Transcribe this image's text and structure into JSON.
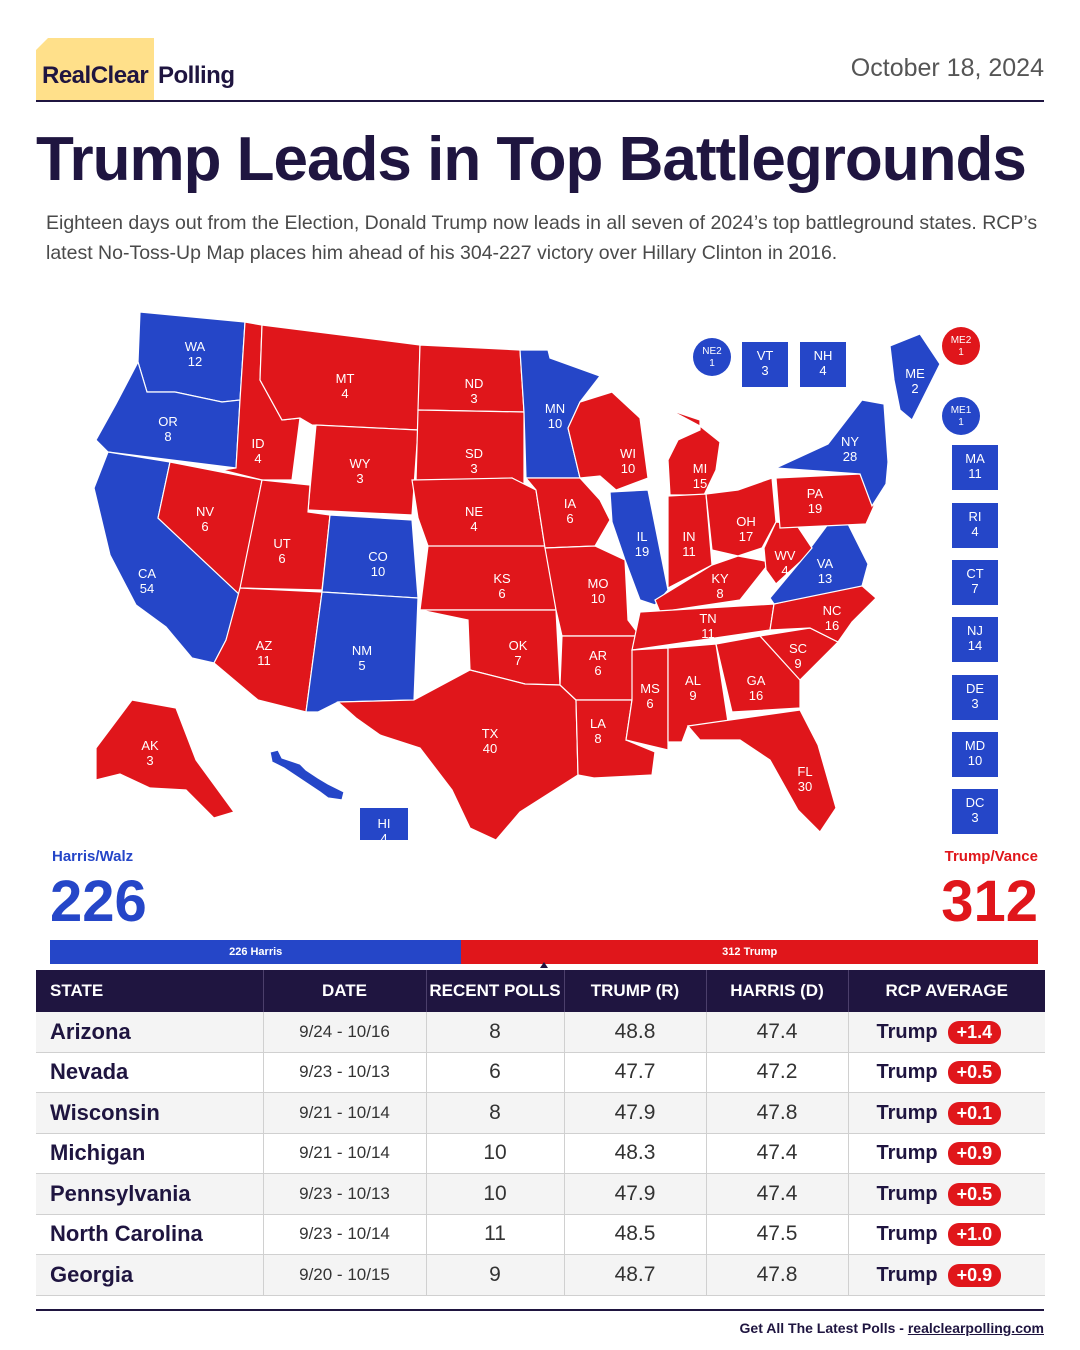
{
  "header": {
    "logo_primary": "RealClear",
    "logo_secondary": "Polling",
    "date": "October 18, 2024"
  },
  "headline": "Trump Leads in Top Battlegrounds",
  "subtitle": "Eighteen days out from the Election, Donald Trump now leads in all seven of 2024’s top battleground states. RCP’s latest No-Toss-Up Map places him ahead of his 304-227 victory over Hillary Clinton in 2016.",
  "colors": {
    "dem": "#2546c8",
    "rep": "#e0161b",
    "navy": "#1f1540",
    "logo_yellow": "#ffe08a"
  },
  "map": {
    "states": [
      {
        "abbr": "WA",
        "ev": "12",
        "party": "dem"
      },
      {
        "abbr": "OR",
        "ev": "8",
        "party": "dem"
      },
      {
        "abbr": "CA",
        "ev": "54",
        "party": "dem"
      },
      {
        "abbr": "NV",
        "ev": "6",
        "party": "rep"
      },
      {
        "abbr": "ID",
        "ev": "4",
        "party": "rep"
      },
      {
        "abbr": "MT",
        "ev": "4",
        "party": "rep"
      },
      {
        "abbr": "WY",
        "ev": "3",
        "party": "rep"
      },
      {
        "abbr": "UT",
        "ev": "6",
        "party": "rep"
      },
      {
        "abbr": "AZ",
        "ev": "11",
        "party": "rep"
      },
      {
        "abbr": "CO",
        "ev": "10",
        "party": "dem"
      },
      {
        "abbr": "NM",
        "ev": "5",
        "party": "dem"
      },
      {
        "abbr": "ND",
        "ev": "3",
        "party": "rep"
      },
      {
        "abbr": "SD",
        "ev": "3",
        "party": "rep"
      },
      {
        "abbr": "NE",
        "ev": "4",
        "party": "rep"
      },
      {
        "abbr": "KS",
        "ev": "6",
        "party": "rep"
      },
      {
        "abbr": "OK",
        "ev": "7",
        "party": "rep"
      },
      {
        "abbr": "TX",
        "ev": "40",
        "party": "rep"
      },
      {
        "abbr": "MN",
        "ev": "10",
        "party": "dem"
      },
      {
        "abbr": "IA",
        "ev": "6",
        "party": "rep"
      },
      {
        "abbr": "MO",
        "ev": "10",
        "party": "rep"
      },
      {
        "abbr": "AR",
        "ev": "6",
        "party": "rep"
      },
      {
        "abbr": "LA",
        "ev": "8",
        "party": "rep"
      },
      {
        "abbr": "WI",
        "ev": "10",
        "party": "rep"
      },
      {
        "abbr": "IL",
        "ev": "19",
        "party": "dem"
      },
      {
        "abbr": "MI",
        "ev": "15",
        "party": "rep"
      },
      {
        "abbr": "IN",
        "ev": "11",
        "party": "rep"
      },
      {
        "abbr": "OH",
        "ev": "17",
        "party": "rep"
      },
      {
        "abbr": "KY",
        "ev": "8",
        "party": "rep"
      },
      {
        "abbr": "TN",
        "ev": "11",
        "party": "rep"
      },
      {
        "abbr": "MS",
        "ev": "6",
        "party": "rep"
      },
      {
        "abbr": "AL",
        "ev": "9",
        "party": "rep"
      },
      {
        "abbr": "GA",
        "ev": "16",
        "party": "rep"
      },
      {
        "abbr": "FL",
        "ev": "30",
        "party": "rep"
      },
      {
        "abbr": "SC",
        "ev": "9",
        "party": "rep"
      },
      {
        "abbr": "NC",
        "ev": "16",
        "party": "rep"
      },
      {
        "abbr": "VA",
        "ev": "13",
        "party": "dem"
      },
      {
        "abbr": "WV",
        "ev": "4",
        "party": "rep"
      },
      {
        "abbr": "PA",
        "ev": "19",
        "party": "rep"
      },
      {
        "abbr": "NY",
        "ev": "28",
        "party": "dem"
      },
      {
        "abbr": "ME",
        "ev": "2",
        "party": "dem"
      },
      {
        "abbr": "AK",
        "ev": "3",
        "party": "rep"
      },
      {
        "abbr": "HI",
        "ev": "4",
        "party": "dem"
      }
    ],
    "small_states": [
      {
        "abbr": "VT",
        "ev": "3",
        "party": "dem"
      },
      {
        "abbr": "NH",
        "ev": "4",
        "party": "dem"
      },
      {
        "abbr": "MA",
        "ev": "11",
        "party": "dem"
      },
      {
        "abbr": "RI",
        "ev": "4",
        "party": "dem"
      },
      {
        "abbr": "CT",
        "ev": "7",
        "party": "dem"
      },
      {
        "abbr": "NJ",
        "ev": "14",
        "party": "dem"
      },
      {
        "abbr": "DE",
        "ev": "3",
        "party": "dem"
      },
      {
        "abbr": "MD",
        "ev": "10",
        "party": "dem"
      },
      {
        "abbr": "DC",
        "ev": "3",
        "party": "dem"
      }
    ],
    "districts": [
      {
        "abbr": "NE2",
        "ev": "1",
        "party": "dem"
      },
      {
        "abbr": "ME2",
        "ev": "1",
        "party": "rep"
      },
      {
        "abbr": "ME1",
        "ev": "1",
        "party": "dem"
      }
    ]
  },
  "totals": {
    "dem_name": "Harris/Walz",
    "dem_ev": "226",
    "rep_name": "Trump/Vance",
    "rep_ev": "312",
    "bar_dem_label": "226 Harris",
    "bar_rep_label": "312 Trump"
  },
  "table": {
    "headers": [
      "STATE",
      "DATE",
      "RECENT POLLS",
      "TRUMP (R)",
      "HARRIS (D)",
      "RCP AVERAGE"
    ],
    "rows": [
      {
        "state": "Arizona",
        "date": "9/24 - 10/16",
        "polls": "8",
        "trump": "48.8",
        "harris": "47.4",
        "leader": "Trump",
        "margin": "+1.4"
      },
      {
        "state": "Nevada",
        "date": "9/23 - 10/13",
        "polls": "6",
        "trump": "47.7",
        "harris": "47.2",
        "leader": "Trump",
        "margin": "+0.5"
      },
      {
        "state": "Wisconsin",
        "date": "9/21 - 10/14",
        "polls": "8",
        "trump": "47.9",
        "harris": "47.8",
        "leader": "Trump",
        "margin": "+0.1"
      },
      {
        "state": "Michigan",
        "date": "9/21 - 10/14",
        "polls": "10",
        "trump": "48.3",
        "harris": "47.4",
        "leader": "Trump",
        "margin": "+0.9"
      },
      {
        "state": "Pennsylvania",
        "date": "9/23 - 10/13",
        "polls": "10",
        "trump": "47.9",
        "harris": "47.4",
        "leader": "Trump",
        "margin": "+0.5"
      },
      {
        "state": "North Carolina",
        "date": "9/23 - 10/14",
        "polls": "11",
        "trump": "48.5",
        "harris": "47.5",
        "leader": "Trump",
        "margin": "+1.0"
      },
      {
        "state": "Georgia",
        "date": "9/20 - 10/15",
        "polls": "9",
        "trump": "48.7",
        "harris": "47.8",
        "leader": "Trump",
        "margin": "+0.9"
      }
    ]
  },
  "footer": {
    "text": "Get All The Latest Polls  -",
    "link": "realclearpolling.com"
  }
}
